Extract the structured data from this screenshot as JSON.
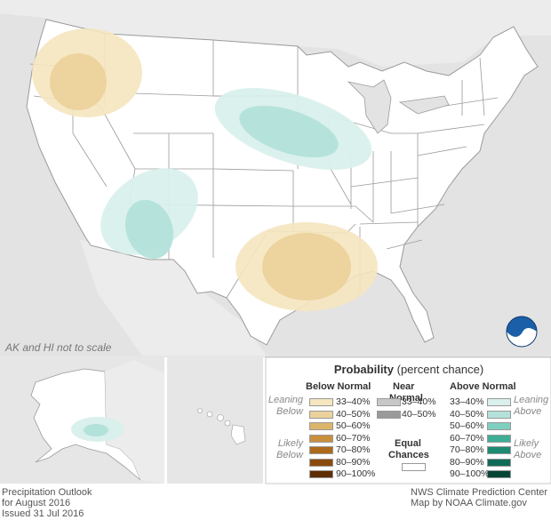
{
  "note": "AK and HI not to scale",
  "legend": {
    "title": "Probability",
    "subtitle": "(percent chance)",
    "below_header": "Below Normal",
    "near_header_1": "Near",
    "near_header_2": "Normal",
    "above_header": "Above Normal",
    "leaning_below_1": "Leaning",
    "leaning_below_2": "Below",
    "likely_below_1": "Likely",
    "likely_below_2": "Below",
    "leaning_above_1": "Leaning",
    "leaning_above_2": "Above",
    "likely_above_1": "Likely",
    "likely_above_2": "Above",
    "equal_1": "Equal",
    "equal_2": "Chances",
    "below": [
      {
        "range": "33–40%",
        "color": "#f5e6bf"
      },
      {
        "range": "40–50%",
        "color": "#ecd29c"
      },
      {
        "range": "50–60%",
        "color": "#dcb56b"
      },
      {
        "range": "60–70%",
        "color": "#c98f3c"
      },
      {
        "range": "70–80%",
        "color": "#ad6a1b"
      },
      {
        "range": "80–90%",
        "color": "#8a4b0e"
      },
      {
        "range": "90–100%",
        "color": "#5e2f06"
      }
    ],
    "near": [
      {
        "range": "33–40%",
        "color": "#c8c8c8"
      },
      {
        "range": "40–50%",
        "color": "#9a9a9a"
      }
    ],
    "above": [
      {
        "range": "33–40%",
        "color": "#d9f0ec"
      },
      {
        "range": "40–50%",
        "color": "#b3e2da"
      },
      {
        "range": "50–60%",
        "color": "#7fcfbf"
      },
      {
        "range": "60–70%",
        "color": "#3fae97"
      },
      {
        "range": "70–80%",
        "color": "#1e8a73"
      },
      {
        "range": "80–90%",
        "color": "#0f6b57"
      },
      {
        "range": "90–100%",
        "color": "#064536"
      }
    ]
  },
  "footer": {
    "left_1": "Precipitation Outlook",
    "left_2": "for August 2016",
    "left_3": "Issued 31 Jul 2016",
    "right_1": "NWS Climate Prediction Center",
    "right_2": "Map by NOAA Climate.gov"
  },
  "logo": {
    "text": "NOAA"
  },
  "colors": {
    "land": "#ffffff",
    "background": "#e6e6e6",
    "border": "#999999"
  }
}
